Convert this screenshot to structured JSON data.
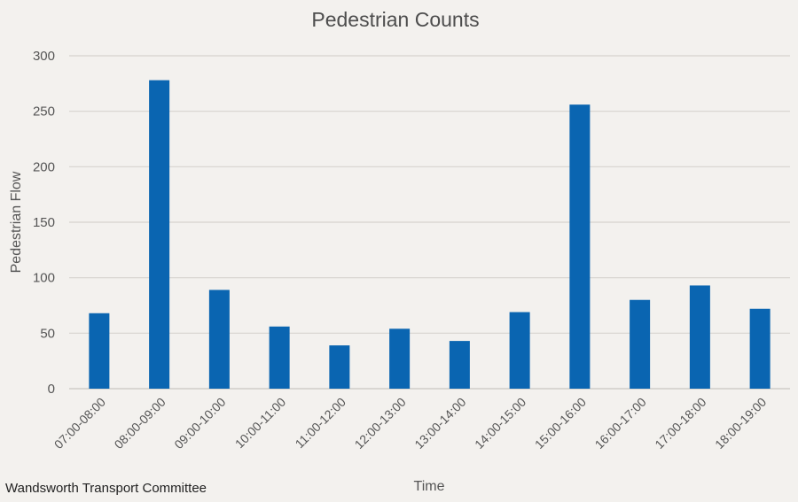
{
  "chart_data": {
    "type": "bar",
    "title": "Pedestrian Counts",
    "xlabel": "Time",
    "ylabel": "Pedestrian Flow",
    "categories": [
      "07:00-08:00",
      "08:00-09:00",
      "09:00-10:00",
      "10:00-11:00",
      "11:00-12:00",
      "12:00-13:00",
      "13:00-14:00",
      "14:00-15:00",
      "15:00-16:00",
      "16:00-17:00",
      "17:00-18:00",
      "18:00-19:00"
    ],
    "values": [
      68,
      278,
      89,
      56,
      39,
      54,
      43,
      69,
      256,
      80,
      93,
      72
    ],
    "ylim": [
      0,
      300
    ],
    "yticks": [
      0,
      50,
      100,
      150,
      200,
      250,
      300
    ],
    "grid": true,
    "bar_color": "#0a65b1"
  },
  "footer": {
    "source": "Wandsworth Transport Committee"
  }
}
